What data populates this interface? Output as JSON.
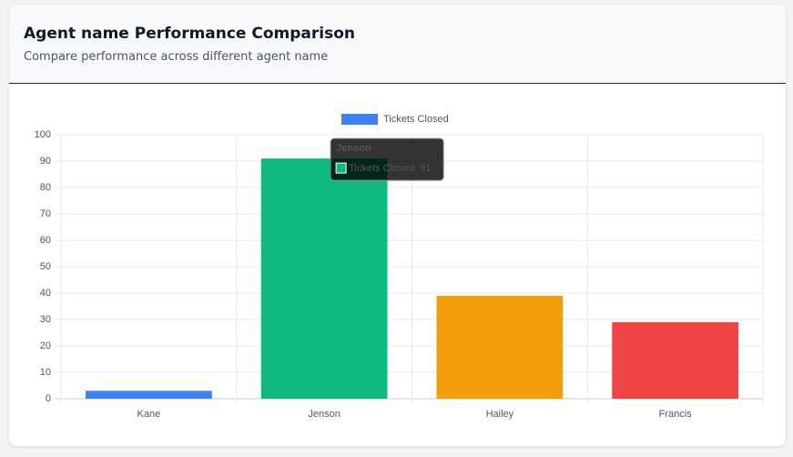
{
  "chart_data": {
    "type": "bar",
    "title": "Agent name Performance Comparison",
    "subtitle": "Compare performance across different agent name",
    "categories": [
      "Kane",
      "Jenson",
      "Hailey",
      "Francis"
    ],
    "series": [
      {
        "name": "Tickets Closed",
        "color": "#3b82f6",
        "values": [
          3,
          91,
          39,
          29
        ],
        "bar_colors": [
          "#3b82f6",
          "#10b981",
          "#f59e0b",
          "#ef4444"
        ]
      }
    ],
    "ylim": [
      0,
      100
    ],
    "yticks": [
      0,
      10,
      20,
      30,
      40,
      50,
      60,
      70,
      80,
      90,
      100
    ],
    "grid": true,
    "legend": "top",
    "tooltip": {
      "title": "Jenson",
      "label": "Tickets Closed: 91"
    }
  }
}
